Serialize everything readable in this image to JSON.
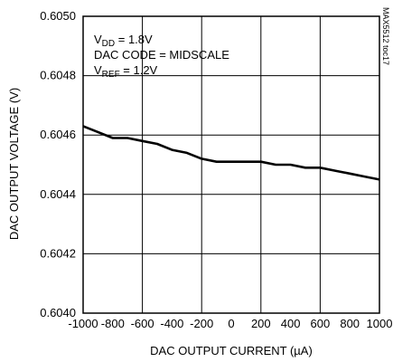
{
  "chart_data": {
    "type": "line",
    "xlabel": "DAC OUTPUT CURRENT (µA)",
    "ylabel": "DAC OUTPUT VOLTAGE (V)",
    "xlim": [
      -1000,
      1000
    ],
    "ylim": [
      0.604,
      0.605
    ],
    "grid": true,
    "x_ticks": [
      -1000,
      -800,
      -600,
      -400,
      -200,
      0,
      200,
      400,
      600,
      800,
      1000
    ],
    "x_tick_labels": [
      "-1000",
      "-800",
      "-600",
      "-400",
      "-200",
      "0",
      "200",
      "400",
      "600",
      "800",
      "1000"
    ],
    "y_ticks": [
      0.604,
      0.6042,
      0.6044,
      0.6046,
      0.6048,
      0.605
    ],
    "y_tick_labels": [
      "0.6040",
      "0.6042",
      "0.6044",
      "0.6046",
      "0.6048",
      "0.6050"
    ],
    "annotations": [
      {
        "main": "V",
        "sub": "DD",
        "rest": " = 1.8V"
      },
      {
        "main": "DAC CODE = MIDSCALE",
        "sub": "",
        "rest": ""
      },
      {
        "main": "V",
        "sub": "REF",
        "rest": " = 1.2V"
      }
    ],
    "figure_tag": "MAX5512 toc17",
    "series": [
      {
        "x": [
          -1000,
          -900,
          -800,
          -700,
          -600,
          -500,
          -400,
          -300,
          -200,
          -100,
          0,
          100,
          200,
          300,
          400,
          500,
          600,
          700,
          800,
          900,
          1000
        ],
        "y": [
          0.60463,
          0.60461,
          0.60459,
          0.60459,
          0.60458,
          0.60457,
          0.60455,
          0.60454,
          0.60452,
          0.60451,
          0.60451,
          0.60451,
          0.60451,
          0.6045,
          0.6045,
          0.60449,
          0.60449,
          0.60448,
          0.60447,
          0.60446,
          0.60445
        ],
        "color": "#000000"
      }
    ]
  }
}
